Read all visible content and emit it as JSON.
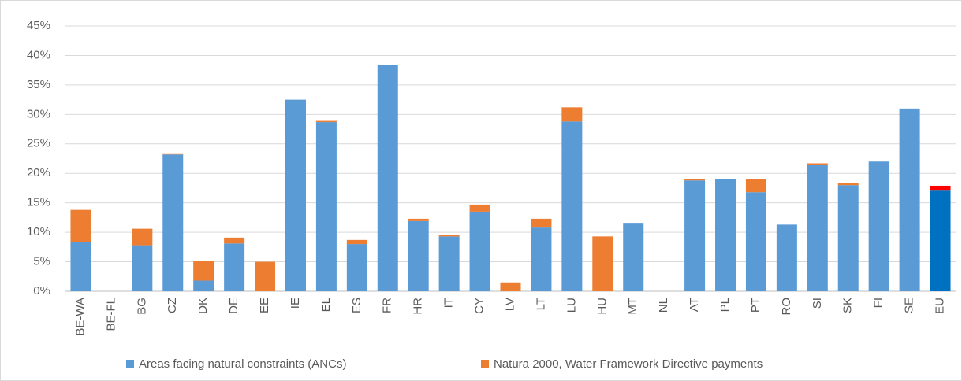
{
  "chart_data": {
    "type": "stacked_bar",
    "categories": [
      "BE-WA",
      "BE-FL",
      "BG",
      "CZ",
      "DK",
      "DE",
      "EE",
      "IE",
      "EL",
      "ES",
      "FR",
      "HR",
      "IT",
      "CY",
      "LV",
      "LT",
      "LU",
      "HU",
      "MT",
      "NL",
      "AT",
      "PL",
      "PT",
      "RO",
      "SI",
      "SK",
      "FI",
      "SE",
      "EU"
    ],
    "series": [
      {
        "name": "Areas facing natural constraints (ANCs)",
        "color": "#5b9bd5",
        "colors": [
          "#5b9bd5",
          "#5b9bd5",
          "#5b9bd5",
          "#5b9bd5",
          "#5b9bd5",
          "#5b9bd5",
          "#5b9bd5",
          "#5b9bd5",
          "#5b9bd5",
          "#5b9bd5",
          "#5b9bd5",
          "#5b9bd5",
          "#5b9bd5",
          "#5b9bd5",
          "#5b9bd5",
          "#5b9bd5",
          "#5b9bd5",
          "#5b9bd5",
          "#5b9bd5",
          "#5b9bd5",
          "#5b9bd5",
          "#5b9bd5",
          "#5b9bd5",
          "#5b9bd5",
          "#5b9bd5",
          "#5b9bd5",
          "#5b9bd5",
          "#5b9bd5",
          "#0070c0"
        ],
        "values": [
          8.4,
          0,
          7.8,
          23.2,
          1.8,
          8.1,
          0,
          32.5,
          28.7,
          8.0,
          38.4,
          11.9,
          9.3,
          13.5,
          0,
          10.8,
          28.8,
          0,
          11.6,
          0,
          18.8,
          19.0,
          16.8,
          11.3,
          21.5,
          18.0,
          22.0,
          31.0,
          17.2
        ]
      },
      {
        "name": "Natura 2000, Water Framework Directive payments",
        "color": "#ed7d31",
        "colors": [
          "#ed7d31",
          "#ed7d31",
          "#ed7d31",
          "#ed7d31",
          "#ed7d31",
          "#ed7d31",
          "#ed7d31",
          "#ed7d31",
          "#ed7d31",
          "#ed7d31",
          "#ed7d31",
          "#ed7d31",
          "#ed7d31",
          "#ed7d31",
          "#ed7d31",
          "#ed7d31",
          "#ed7d31",
          "#ed7d31",
          "#ed7d31",
          "#ed7d31",
          "#ed7d31",
          "#ed7d31",
          "#ed7d31",
          "#ed7d31",
          "#ed7d31",
          "#ed7d31",
          "#ed7d31",
          "#ed7d31",
          "#ff0000"
        ],
        "values": [
          5.4,
          0,
          2.8,
          0.2,
          3.4,
          1.0,
          5.0,
          0,
          0.2,
          0.7,
          0,
          0.4,
          0.3,
          1.2,
          1.5,
          1.5,
          2.4,
          9.3,
          0,
          0,
          0.2,
          0,
          2.2,
          0,
          0.2,
          0.3,
          0,
          0,
          0.7
        ]
      }
    ],
    "ylim": [
      0,
      45
    ],
    "yticks": [
      {
        "value": 0,
        "label": "0%"
      },
      {
        "value": 5,
        "label": "5%"
      },
      {
        "value": 10,
        "label": "10%"
      },
      {
        "value": 15,
        "label": "15%"
      },
      {
        "value": 20,
        "label": "20%"
      },
      {
        "value": 25,
        "label": "25%"
      },
      {
        "value": 30,
        "label": "30%"
      },
      {
        "value": 35,
        "label": "35%"
      },
      {
        "value": 40,
        "label": "40%"
      },
      {
        "value": 45,
        "label": "45%"
      }
    ],
    "grid": true,
    "legend": "bottom"
  }
}
